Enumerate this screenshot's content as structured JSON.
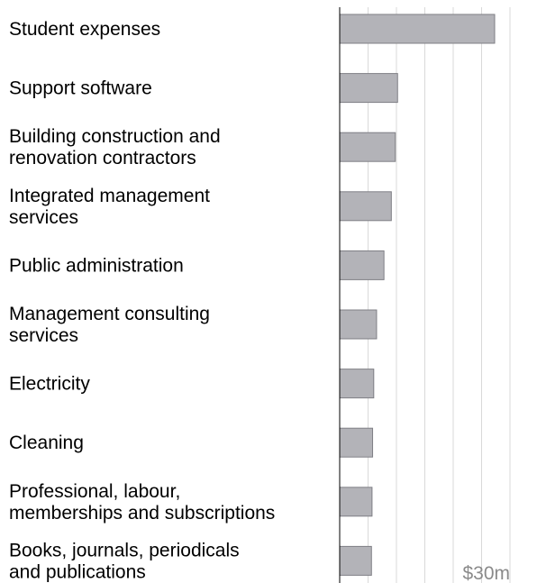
{
  "chart_data": {
    "type": "bar",
    "orientation": "horizontal",
    "categories": [
      [
        "Student expenses"
      ],
      [
        "Support software"
      ],
      [
        "Building construction and",
        "renovation contractors"
      ],
      [
        "Integrated management",
        "services"
      ],
      [
        "Public administration"
      ],
      [
        "Management consulting",
        "services"
      ],
      [
        "Electricity"
      ],
      [
        "Cleaning"
      ],
      [
        "Professional, labour,",
        "memberships and subscriptions"
      ],
      [
        "Books, journals, periodicals",
        "and publications"
      ]
    ],
    "values": [
      27.3,
      10.2,
      9.8,
      9.1,
      7.8,
      6.5,
      6.0,
      5.8,
      5.7,
      5.6
    ],
    "xlim": [
      0,
      30
    ],
    "ticks": [
      0,
      5,
      10,
      15,
      20,
      25,
      30
    ],
    "tick_labels": [
      {
        "value": 30,
        "text": "$30m"
      }
    ],
    "grid": true,
    "colors": {
      "bar_fill": "#b3b3b8",
      "bar_stroke": "#7f7f85",
      "grid": "#d9d9d9",
      "axis": "#000000",
      "tick_text": "#8a8a8a",
      "label_text": "#000000"
    }
  }
}
